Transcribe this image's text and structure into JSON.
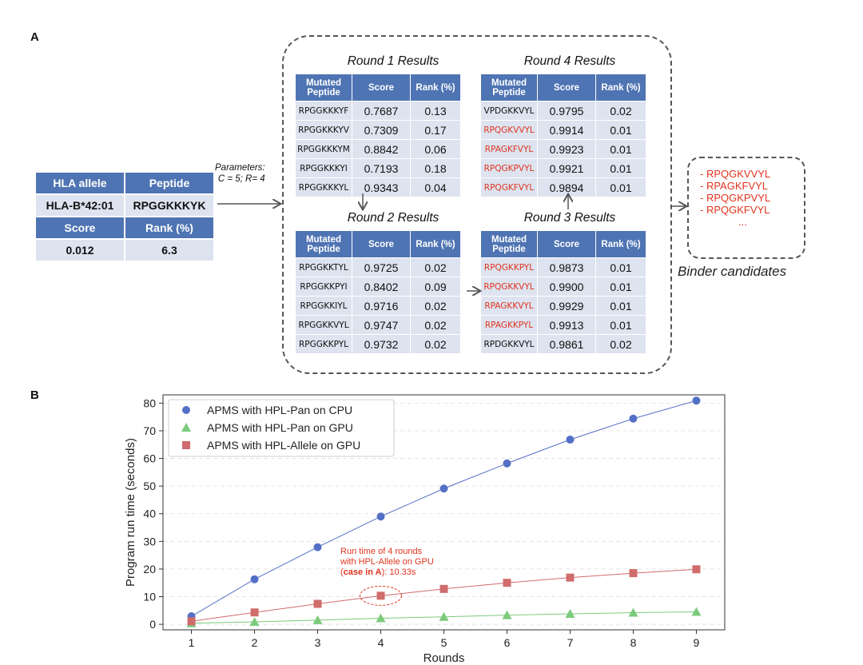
{
  "panels": {
    "a": "A",
    "b": "B"
  },
  "hla_table": {
    "header1": [
      "HLA allele",
      "Peptide"
    ],
    "row1": [
      "HLA-B*42:01",
      "RPGGKKKYK"
    ],
    "header2": [
      "Score",
      "Rank (%)"
    ],
    "row2": [
      "0.012",
      "6.3"
    ]
  },
  "parameters": {
    "line1": "Parameters:",
    "line2": "C = 5; R= 4"
  },
  "round_columns": [
    "Mutated Peptide",
    "Score",
    "Rank (%)"
  ],
  "rounds": [
    {
      "title": "Round 1 Results",
      "rows": [
        {
          "peptide": "RPGGKKKYF",
          "score": "0.7687",
          "rank": "0.13",
          "highlight": false
        },
        {
          "peptide": "RPGGKKKYV",
          "score": "0.7309",
          "rank": "0.17",
          "highlight": false
        },
        {
          "peptide": "RPGGKKKYM",
          "score": "0.8842",
          "rank": "0.06",
          "highlight": false
        },
        {
          "peptide": "RPGGKKKYI",
          "score": "0.7193",
          "rank": "0.18",
          "highlight": false
        },
        {
          "peptide": "RPGGKKKYL",
          "score": "0.9343",
          "rank": "0.04",
          "highlight": false
        }
      ]
    },
    {
      "title": "Round 2 Results",
      "rows": [
        {
          "peptide": "RPGGKKTYL",
          "score": "0.9725",
          "rank": "0.02",
          "highlight": false
        },
        {
          "peptide": "RPGGKKPYI",
          "score": "0.8402",
          "rank": "0.09",
          "highlight": false
        },
        {
          "peptide": "RPGGKKIYL",
          "score": "0.9716",
          "rank": "0.02",
          "highlight": false
        },
        {
          "peptide": "RPGGKKVYL",
          "score": "0.9747",
          "rank": "0.02",
          "highlight": false
        },
        {
          "peptide": "RPGGKKPYL",
          "score": "0.9732",
          "rank": "0.02",
          "highlight": false
        }
      ]
    },
    {
      "title": "Round 3 Results",
      "rows": [
        {
          "peptide": "RPQGKKPYL",
          "score": "0.9873",
          "rank": "0.01",
          "highlight": true
        },
        {
          "peptide": "RPQGKKVYL",
          "score": "0.9900",
          "rank": "0.01",
          "highlight": true
        },
        {
          "peptide": "RPAGKKVYL",
          "score": "0.9929",
          "rank": "0.01",
          "highlight": true
        },
        {
          "peptide": "RPAGKKPYL",
          "score": "0.9913",
          "rank": "0.01",
          "highlight": true
        },
        {
          "peptide": "RPDGKKVYL",
          "score": "0.9861",
          "rank": "0.02",
          "highlight": false
        }
      ]
    },
    {
      "title": "Round 4 Results",
      "rows": [
        {
          "peptide": "VPDGKKVYL",
          "score": "0.9795",
          "rank": "0.02",
          "highlight": false
        },
        {
          "peptide": "RPQGKVVYL",
          "score": "0.9914",
          "rank": "0.01",
          "highlight": true
        },
        {
          "peptide": "RPAGKFVYL",
          "score": "0.9923",
          "rank": "0.01",
          "highlight": true
        },
        {
          "peptide": "RPQGKPVYL",
          "score": "0.9921",
          "rank": "0.01",
          "highlight": true
        },
        {
          "peptide": "RPQGKFVYL",
          "score": "0.9894",
          "rank": "0.01",
          "highlight": true
        }
      ]
    }
  ],
  "binder": {
    "items": [
      "-  RPQGKVVYL",
      "-  RPAGKFVYL",
      "-  RPQGKPVYL",
      "-  RPQGKFVYL"
    ],
    "ellipsis": "...",
    "title": "Binder candidates"
  },
  "colors": {
    "header": "#4f74b3",
    "cell": "#dde3ef",
    "highlight": "#e0341f",
    "cpu": "#5470c6",
    "gpu_pan": "#7ccb7c",
    "gpu_allele": "#d06c6c"
  },
  "chart_data": {
    "type": "line",
    "xlabel": "Rounds",
    "ylabel": "Program run time (seconds)",
    "x": [
      1,
      2,
      3,
      4,
      5,
      6,
      7,
      8,
      9
    ],
    "xlim": [
      0.55,
      9.45
    ],
    "ylim": [
      -2,
      83
    ],
    "yticks": [
      0,
      10,
      20,
      30,
      40,
      50,
      60,
      70,
      80
    ],
    "grid": "horizontal dashed",
    "legend": "top-left",
    "series": [
      {
        "name": "APMS with HPL-Pan on CPU",
        "marker": "circle",
        "color": "#5470c6",
        "values": [
          2.9,
          16.3,
          27.9,
          39.0,
          49.1,
          58.2,
          66.8,
          74.4,
          80.9
        ]
      },
      {
        "name": "APMS with HPL-Pan on GPU",
        "marker": "triangle",
        "color": "#7ccb7c",
        "values": [
          0.4,
          0.9,
          1.5,
          2.2,
          2.7,
          3.3,
          3.8,
          4.2,
          4.5
        ]
      },
      {
        "name": "APMS with HPL-Allele on GPU",
        "marker": "square",
        "color": "#d06c6c",
        "values": [
          1.1,
          4.3,
          7.4,
          10.33,
          12.8,
          15.0,
          16.9,
          18.5,
          19.9
        ]
      }
    ],
    "annotation": {
      "line1": "Run time of 4 rounds",
      "line2": "with HPL-Allele on GPU",
      "bold": "case in A",
      "open": "(",
      "close": ")",
      "tail": ": 10.33s",
      "x": 4,
      "y": 10.33
    }
  }
}
